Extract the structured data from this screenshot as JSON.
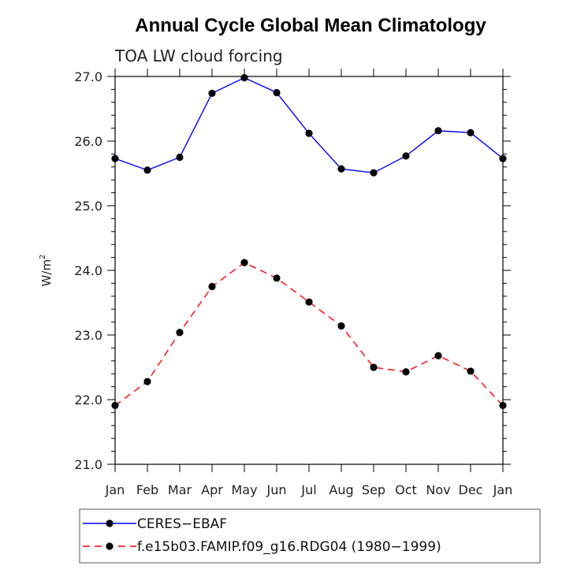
{
  "chart_data": {
    "type": "line",
    "title": "Annual Cycle Global Mean Climatology",
    "subtitle": "TOA LW cloud forcing",
    "ylabel": "W/m",
    "ylabel_sup": "2",
    "xlabel": "",
    "categories": [
      "Jan",
      "Feb",
      "Mar",
      "Apr",
      "May",
      "Jun",
      "Jul",
      "Aug",
      "Sep",
      "Oct",
      "Nov",
      "Dec",
      "Jan"
    ],
    "ylim": [
      21.0,
      27.0
    ],
    "yticks": [
      "21.0",
      "22.0",
      "23.0",
      "24.0",
      "25.0",
      "26.0",
      "27.0"
    ],
    "series": [
      {
        "name": "CERES−EBAF",
        "color": "#0000ff",
        "dash": "solid",
        "values": [
          25.73,
          25.55,
          25.75,
          26.74,
          26.98,
          26.75,
          26.12,
          25.57,
          25.51,
          25.77,
          26.16,
          26.13,
          25.73
        ]
      },
      {
        "name": "f.e15b03.FAMIP.f09_g16.RDG04 (1980−1999)",
        "color": "#ff0000",
        "dash": "dashed",
        "values": [
          21.91,
          22.28,
          23.04,
          23.75,
          24.12,
          23.88,
          23.51,
          23.14,
          22.5,
          22.43,
          22.68,
          22.44,
          21.91
        ]
      }
    ],
    "grid": false,
    "legend_position": "bottom"
  }
}
